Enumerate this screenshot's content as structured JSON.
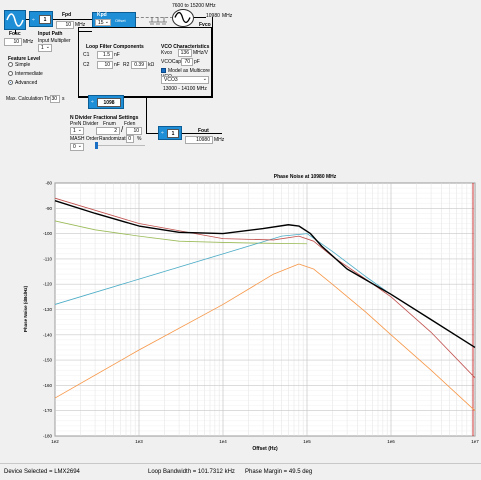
{
  "diagram": {
    "fosc": {
      "label": "Fosc",
      "value": "10",
      "unit": "MHz"
    },
    "input_path": {
      "title": "Input Path",
      "multiplier_label": "Input Multiplier",
      "multiplier_value": "1"
    },
    "r_block": {
      "value": "1"
    },
    "fpd": {
      "label": "Fpd",
      "value": "10",
      "unit": "MHz"
    },
    "kpd": {
      "label": "Kpd",
      "value": "15",
      "offset_label": "Offset",
      "sub_label": "mA"
    },
    "vco_range": "7600 to 15200 MHz",
    "fvco": {
      "label": "Fvco",
      "value": "10980",
      "unit": "MHz"
    },
    "feature_level": {
      "title": "Feature Level",
      "options": [
        "Simple",
        "Intermediate",
        "Advanced"
      ],
      "selected": "Advanced"
    },
    "max_calc": {
      "label": "Max. Calculation Time",
      "value": "30",
      "unit": "s"
    },
    "loop_filter": {
      "title": "Loop Filter Components",
      "c1_label": "C1",
      "c1_value": "1.5",
      "c1_unit": "nF",
      "c2_label": "C2",
      "c2_value": "10",
      "c2_unit": "nF",
      "r2_label": "R2",
      "r2_value": "0.39",
      "r2_unit": "kΩ"
    },
    "vco": {
      "title": "VCO Characteristics",
      "kvco_label": "Kvco",
      "kvco_value": "136",
      "kvco_unit": "MHz/V",
      "vcocap_label": "VCOCap",
      "vcocap_value": "70",
      "vcocap_unit": "pF",
      "multicore_label": "Model as Multicore VCO",
      "vco_select": "VCO3",
      "vco_band": "13000 - 14100 MHz"
    },
    "n_block": {
      "value": "1098"
    },
    "n_divider": {
      "title": "N Divider Fractional Settings",
      "prefn_label": "PreN Divider",
      "prefn_value": "1",
      "fnum_label": "Fnum",
      "fnum_value": "2",
      "fden_label": "Fden",
      "fden_value": "10",
      "mash_label": "MASH Order",
      "mash_value": "0",
      "rand_label": "Randomization",
      "rand_value": "0",
      "rand_unit": "%"
    },
    "out_block": {
      "value": "1"
    },
    "fout": {
      "label": "Fout",
      "value": "10980",
      "unit": "MHz"
    }
  },
  "chart_data": {
    "type": "line",
    "title": "Phase Noise at 10980 MHz",
    "xlabel": "Offset (Hz)",
    "ylabel": "Phase Noise (dBc/Hz)",
    "xscale": "log",
    "xlim": [
      100,
      10000000
    ],
    "ylim": [
      -180,
      -80
    ],
    "x_ticks": [
      "1e2",
      "1e3",
      "1e4",
      "1e5",
      "1e6",
      "1e7"
    ],
    "y_ticks": [
      "-80",
      "-90",
      "-100",
      "-110",
      "-120",
      "-130",
      "-140",
      "-150",
      "-160",
      "-170",
      "-180"
    ],
    "grid": true,
    "series": [
      {
        "color": "#000000",
        "x": [
          100,
          300,
          1000,
          3000,
          10000,
          30000,
          60000,
          80000,
          110000,
          150000,
          300000,
          1000000,
          3000000,
          10000000
        ],
        "y": [
          -87,
          -92,
          -97,
          -99.5,
          -100,
          -98,
          -96.5,
          -97,
          -100,
          -105,
          -114,
          -124,
          -134,
          -145
        ]
      },
      {
        "color": "#c0504d",
        "x": [
          100,
          1000,
          10000,
          40000,
          80000,
          120000,
          200000,
          500000,
          1000000,
          3000000,
          10000000
        ],
        "y": [
          -86,
          -96,
          -102,
          -102.5,
          -101,
          -103,
          -109,
          -118,
          -125,
          -139,
          -157
        ]
      },
      {
        "color": "#4bacc6",
        "x": [
          100,
          1000,
          10000,
          50000,
          100000,
          200000,
          500000,
          1000000,
          3000000,
          10000000
        ],
        "y": [
          -128,
          -118,
          -108,
          -101,
          -100,
          -107,
          -117,
          -124,
          -134,
          -145
        ]
      },
      {
        "color": "#9bbb59",
        "x": [
          100,
          300,
          1000,
          3000,
          10000,
          30000,
          100000
        ],
        "y": [
          -95,
          -98.5,
          -101,
          -103,
          -103.5,
          -103.8,
          -104
        ]
      },
      {
        "color": "#f79646",
        "x": [
          100,
          1000,
          10000,
          40000,
          80000,
          120000,
          200000,
          500000,
          1000000,
          3000000,
          10000000
        ],
        "y": [
          -165,
          -146,
          -128,
          -116,
          -112,
          -114,
          -120,
          -131,
          -140,
          -154,
          -170
        ]
      }
    ],
    "markers": [
      {
        "color": "#c00000",
        "x": 10000000
      }
    ]
  },
  "status": {
    "device": "Device Selected = LMX2694",
    "bandwidth": "Loop Bandwidth = 101.7312 kHz",
    "margin": "Phase Margin = 49.5 deg"
  }
}
